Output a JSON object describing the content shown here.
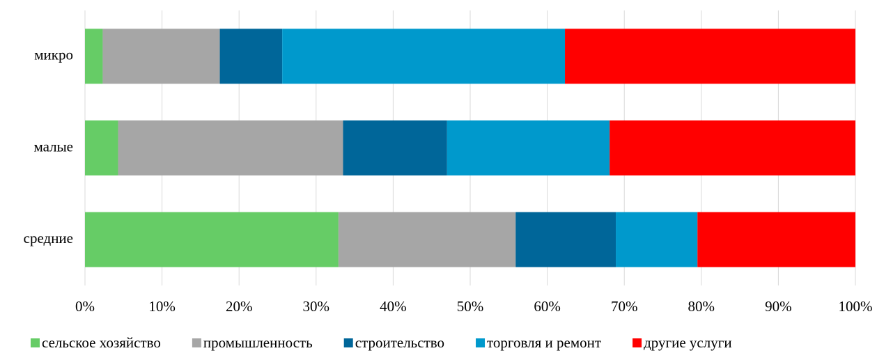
{
  "chart_data": {
    "type": "stacked_barh",
    "categories": [
      "микро",
      "малые",
      "средние"
    ],
    "series": [
      {
        "name": "сельское хозяйство",
        "color": "#66cc66",
        "values": [
          2.3,
          4.3,
          32.9
        ]
      },
      {
        "name": "промышленность",
        "color": "#a6a6a6",
        "values": [
          15.2,
          29.2,
          23.0
        ]
      },
      {
        "name": "строительство",
        "color": "#006699",
        "values": [
          8.1,
          13.5,
          13.0
        ]
      },
      {
        "name": "торговля и ремонт",
        "color": "#0099cc",
        "values": [
          36.7,
          21.1,
          10.6
        ]
      },
      {
        "name": "другие услуги",
        "color": "#ff0000",
        "values": [
          37.7,
          31.9,
          20.5
        ]
      }
    ],
    "xlim": [
      0,
      100
    ],
    "xticks": [
      {
        "value": 0,
        "label": "0%"
      },
      {
        "value": 10,
        "label": "10%"
      },
      {
        "value": 20,
        "label": "20%"
      },
      {
        "value": 30,
        "label": "30%"
      },
      {
        "value": 40,
        "label": "40%"
      },
      {
        "value": 50,
        "label": "50%"
      },
      {
        "value": 60,
        "label": "60%"
      },
      {
        "value": 70,
        "label": "70%"
      },
      {
        "value": 80,
        "label": "80%"
      },
      {
        "value": 90,
        "label": "90%"
      },
      {
        "value": 100,
        "label": "100%"
      }
    ],
    "grid": true,
    "legend": "bottom"
  }
}
